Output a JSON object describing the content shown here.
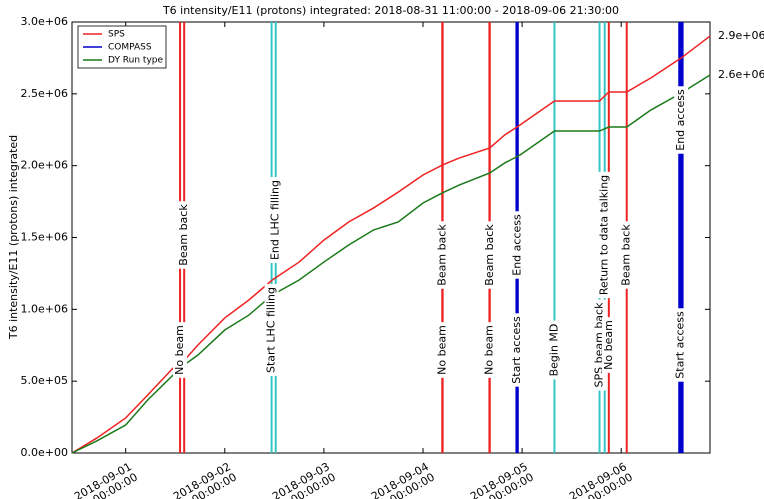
{
  "chart_data": {
    "type": "line",
    "title": "T6 intensity/E11 (protons) integrated: 2018-08-31 11:00:00 - 2018-09-06 21:30:00",
    "y_label": "T6 intensity/E11 (protons) integrated",
    "x": [
      "2018-08-31 11:00:00",
      "2018-08-31 17:00:00",
      "2018-09-01 00:00:00",
      "2018-09-01 05:20:00",
      "2018-09-01 11:30:00",
      "2018-09-01 13:10:00",
      "2018-09-01 17:30:00",
      "2018-09-02 00:00:00",
      "2018-09-02 05:50:00",
      "2018-09-02 11:30:00",
      "2018-09-02 18:00:00",
      "2018-09-03 00:00:00",
      "2018-09-03 06:00:00",
      "2018-09-03 12:00:00",
      "2018-09-03 18:00:00",
      "2018-09-04 00:00:00",
      "2018-09-04 04:40:00",
      "2018-09-04 08:45:00",
      "2018-09-04 16:10:00",
      "2018-09-04 19:45:00",
      "2018-09-04 23:30:00",
      "2018-09-05 07:50:00",
      "2018-09-05 18:45:00",
      "2018-09-05 21:00:00",
      "2018-09-06 01:20:00",
      "2018-09-06 07:10:00",
      "2018-09-06 14:30:00",
      "2018-09-06 21:30:00"
    ],
    "series": [
      {
        "name": "SPS",
        "color": "#ee2222",
        "end_label": "2.9e+06",
        "values": [
          0,
          104000,
          244000,
          404000,
          592000,
          612000,
          752000,
          940000,
          1065000,
          1204000,
          1329000,
          1482000,
          1608000,
          1705000,
          1816000,
          1935000,
          2004000,
          2053000,
          2123000,
          2213000,
          2283000,
          2450000,
          2450000,
          2513000,
          2513000,
          2610000,
          2749000,
          2902000
        ]
      },
      {
        "name": "COMPASS",
        "color": "#0000cc",
        "values": [
          null,
          null,
          null,
          null,
          null,
          null,
          null,
          null,
          null,
          null,
          null,
          null,
          null,
          null,
          null,
          null,
          null,
          null,
          null,
          null,
          null,
          null,
          null,
          null,
          null,
          null,
          null,
          null
        ]
      },
      {
        "name": "DY Run type",
        "color": "#1a7a1a",
        "end_label": "2.6e+06",
        "values": [
          0,
          84000,
          195000,
          369000,
          543000,
          592000,
          682000,
          856000,
          960000,
          1100000,
          1204000,
          1329000,
          1448000,
          1552000,
          1608000,
          1740000,
          1810000,
          1865000,
          1949000,
          2018000,
          2074000,
          2241000,
          2241000,
          2269000,
          2269000,
          2387000,
          2505000,
          2631000
        ]
      }
    ],
    "xlim": [
      "2018-08-31 11:00:00",
      "2018-09-06 21:30:00"
    ],
    "xticks": [
      {
        "value": "2018-09-01 00:00:00",
        "label": "2018-09-01\n00:00:00"
      },
      {
        "value": "2018-09-02 00:00:00",
        "label": "2018-09-02\n00:00:00"
      },
      {
        "value": "2018-09-03 00:00:00",
        "label": "2018-09-03\n00:00:00"
      },
      {
        "value": "2018-09-04 00:00:00",
        "label": "2018-09-04\n00:00:00"
      },
      {
        "value": "2018-09-05 00:00:00",
        "label": "2018-09-05\n00:00:00"
      },
      {
        "value": "2018-09-06 00:00:00",
        "label": "2018-09-06\n00:00:00"
      }
    ],
    "ylim": [
      0,
      3000000
    ],
    "yticks": [
      {
        "value": 0,
        "label": "0.0e+00"
      },
      {
        "value": 500000,
        "label": "5.0e+05"
      },
      {
        "value": 1000000,
        "label": "1.0e+06"
      },
      {
        "value": 1500000,
        "label": "1.5e+06"
      },
      {
        "value": 2000000,
        "label": "2.0e+06"
      },
      {
        "value": 2500000,
        "label": "2.5e+06"
      },
      {
        "value": 3000000,
        "label": "3.0e+06"
      }
    ],
    "legend": "upper left",
    "annotations": [
      {
        "x": "2018-09-01 13:10:00",
        "text": "No beam",
        "color": "#ee2222"
      },
      {
        "x": "2018-09-01 14:10:00",
        "text": "Beam back",
        "color": "#ee2222"
      },
      {
        "x": "2018-09-02 11:20:00",
        "text": "Start LHC filling",
        "color": "#33c6c6"
      },
      {
        "x": "2018-09-02 12:20:00",
        "text": "End LHC filling",
        "color": "#33c6c6"
      },
      {
        "x": "2018-09-04 04:40:00",
        "text": "No beam",
        "color": "#ee2222"
      },
      {
        "x": "2018-09-04 04:45:00",
        "text": "Beam back",
        "color": "#ee2222"
      },
      {
        "x": "2018-09-04 16:05:00",
        "text": "No beam",
        "color": "#ee2222"
      },
      {
        "x": "2018-09-04 16:10:00",
        "text": "Beam back",
        "color": "#ee2222"
      },
      {
        "x": "2018-09-04 22:45:00",
        "text": "Start access",
        "color": "#0000cc"
      },
      {
        "x": "2018-09-04 22:50:00",
        "text": "End access",
        "color": "#0000cc"
      },
      {
        "x": "2018-09-05 07:50:00",
        "text": "Begin MD",
        "color": "#33c6c6"
      },
      {
        "x": "2018-09-05 18:45:00",
        "text": "SPS beam back",
        "color": "#33c6c6"
      },
      {
        "x": "2018-09-05 20:00:00",
        "text": "Return to data talking",
        "color": "#33c6c6"
      },
      {
        "x": "2018-09-05 21:00:00",
        "text": "No beam",
        "color": "#ee2222"
      },
      {
        "x": "2018-09-06 01:20:00",
        "text": "Beam back",
        "color": "#ee2222"
      },
      {
        "x": "2018-09-06 14:25:00",
        "text": "Start access",
        "color": "#0000cc"
      },
      {
        "x": "2018-09-06 14:30:00",
        "text": "End access",
        "color": "#0000cc"
      }
    ]
  }
}
